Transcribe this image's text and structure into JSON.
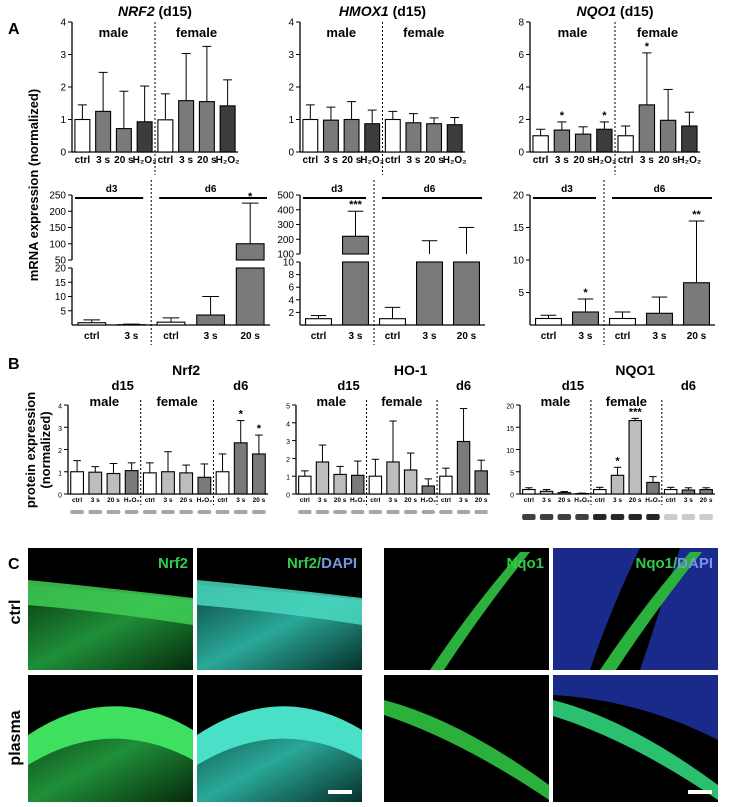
{
  "panels": [
    "A",
    "B",
    "C"
  ],
  "yaxis_a": "mRNA expression (normalized)",
  "yaxis_b_line1": "protein expression",
  "yaxis_b_line2": "(normalized)",
  "colors": {
    "white": "#ffffff",
    "light": "#bdbdbd",
    "mid": "#7a7a7a",
    "dark": "#3c3c3c",
    "green": "#2ecc4a",
    "blue": "#5a7ad8",
    "ifbg": "#000000"
  },
  "chart_data": [
    {
      "type": "bar",
      "id": "a-nrf2-d15",
      "title_gene": "NRF2",
      "title_suffix": " (d15)",
      "groups": [
        "male",
        "female"
      ],
      "categories": [
        "ctrl",
        "3 s",
        "20 s",
        "H₂O₂",
        "ctrl",
        "3 s",
        "20 s",
        "H₂O₂"
      ],
      "values": [
        1.0,
        1.25,
        0.72,
        0.93,
        0.99,
        1.58,
        1.55,
        1.42
      ],
      "errors": [
        0.45,
        1.2,
        1.15,
        1.1,
        0.8,
        1.45,
        1.7,
        0.8
      ],
      "ylim": [
        0,
        4
      ],
      "yticks": [
        "0",
        "1",
        "2",
        "3",
        "4"
      ],
      "stars": [
        "",
        "",
        "",
        "",
        "",
        "",
        "",
        ""
      ]
    },
    {
      "type": "bar",
      "id": "a-hmox1-d15",
      "title_gene": "HMOX1",
      "title_suffix": " (d15)",
      "groups": [
        "male",
        "female"
      ],
      "categories": [
        "ctrl",
        "3 s",
        "20 s",
        "H₂O₂",
        "ctrl",
        "3 s",
        "20 s",
        "H₂O₂"
      ],
      "values": [
        1.0,
        0.98,
        1.0,
        0.87,
        1.0,
        0.9,
        0.87,
        0.84
      ],
      "errors": [
        0.45,
        0.4,
        0.55,
        0.42,
        0.25,
        0.28,
        0.18,
        0.22
      ],
      "ylim": [
        0,
        4
      ],
      "yticks": [
        "0",
        "1",
        "2",
        "3",
        "4"
      ],
      "stars": [
        "",
        "",
        "",
        "",
        "",
        "",
        "",
        ""
      ]
    },
    {
      "type": "bar",
      "id": "a-nqo1-d15",
      "title_gene": "NQO1",
      "title_suffix": " (d15)",
      "groups": [
        "male",
        "female"
      ],
      "categories": [
        "ctrl",
        "3 s",
        "20 s",
        "H₂O₂",
        "ctrl",
        "3 s",
        "20 s",
        "H₂O₂"
      ],
      "values": [
        1.0,
        1.35,
        1.1,
        1.4,
        1.0,
        2.9,
        1.95,
        1.6
      ],
      "errors": [
        0.4,
        0.5,
        0.45,
        0.45,
        0.6,
        3.2,
        1.9,
        0.85
      ],
      "ylim": [
        0,
        8
      ],
      "yticks": [
        "0",
        "2",
        "4",
        "6",
        "8"
      ],
      "stars": [
        "",
        "*",
        "",
        "*",
        "",
        "*",
        "",
        ""
      ]
    },
    {
      "type": "bar",
      "id": "a-nrf2-d3d6",
      "groups": [
        "d3",
        "d6"
      ],
      "categories": [
        "ctrl",
        "3 s",
        "ctrl",
        "3 s",
        "20 s"
      ],
      "values": [
        0.8,
        0.1,
        1.0,
        3.5,
        100
      ],
      "errors": [
        1.0,
        0.2,
        1.5,
        6.5,
        125
      ],
      "yticks_low": [
        "5",
        "10",
        "15",
        "20"
      ],
      "yticks_high": [
        "50",
        "100",
        "150",
        "200",
        "250"
      ],
      "stars": [
        "",
        "",
        "",
        "",
        "*"
      ]
    },
    {
      "type": "bar",
      "id": "a-hmox1-d3d6",
      "groups": [
        "d3",
        "d6"
      ],
      "categories": [
        "ctrl",
        "3 s",
        "ctrl",
        "3 s",
        "20 s"
      ],
      "values": [
        1.0,
        220,
        1.0,
        50,
        70
      ],
      "errors": [
        0.5,
        170,
        1.8,
        140,
        210
      ],
      "yticks_low": [
        "2",
        "4",
        "6",
        "8",
        "10"
      ],
      "yticks_high": [
        "100",
        "200",
        "300",
        "400",
        "500"
      ],
      "stars": [
        "",
        "***",
        "",
        "",
        ""
      ]
    },
    {
      "type": "bar",
      "id": "a-nqo1-d3d6",
      "groups": [
        "d3",
        "d6"
      ],
      "categories": [
        "ctrl",
        "3 s",
        "ctrl",
        "3 s",
        "20 s"
      ],
      "values": [
        1.0,
        2.0,
        1.0,
        1.8,
        6.5
      ],
      "errors": [
        0.5,
        2.0,
        1.0,
        2.5,
        9.5
      ],
      "ylim": [
        0,
        20
      ],
      "yticks": [
        "5",
        "10",
        "15",
        "20"
      ],
      "stars": [
        "",
        "*",
        "",
        "",
        "**"
      ]
    },
    {
      "type": "bar",
      "id": "b-nrf2",
      "title": "Nrf2",
      "groups": [
        "male",
        "female",
        "d6"
      ],
      "group_top": "d15",
      "categories": [
        "ctrl",
        "3 s",
        "20 s",
        "H₂O₂",
        "ctrl",
        "3 s",
        "20 s",
        "H₂O₂",
        "ctrl",
        "3 s",
        "20 s"
      ],
      "values": [
        1.0,
        0.98,
        0.92,
        1.05,
        0.95,
        1.0,
        0.95,
        0.75,
        1.0,
        2.3,
        1.8
      ],
      "errors": [
        0.5,
        0.25,
        0.45,
        0.35,
        0.45,
        0.9,
        0.35,
        0.6,
        0.8,
        1.0,
        0.85
      ],
      "ylim": [
        0,
        4
      ],
      "yticks": [
        "0",
        "1",
        "2",
        "3",
        "4"
      ],
      "stars": [
        "",
        "",
        "",
        "",
        "",
        "",
        "",
        "",
        "",
        "*",
        "*"
      ]
    },
    {
      "type": "bar",
      "id": "b-ho1",
      "title": "HO-1",
      "groups": [
        "male",
        "female",
        "d6"
      ],
      "group_top": "d15",
      "categories": [
        "ctrl",
        "3 s",
        "20 s",
        "H₂O₂",
        "ctrl",
        "3 s",
        "20 s",
        "H₂O₂",
        "ctrl",
        "3 s",
        "20 s"
      ],
      "values": [
        1.0,
        1.8,
        1.1,
        1.05,
        1.0,
        1.8,
        1.35,
        0.45,
        1.0,
        2.95,
        1.3
      ],
      "errors": [
        0.3,
        0.95,
        0.45,
        0.8,
        0.95,
        2.3,
        0.95,
        0.4,
        0.45,
        1.85,
        0.6
      ],
      "ylim": [
        0,
        5
      ],
      "yticks": [
        "0",
        "1",
        "2",
        "3",
        "4",
        "5"
      ],
      "stars": [
        "",
        "",
        "",
        "",
        "",
        "",
        "",
        "",
        "",
        "",
        ""
      ]
    },
    {
      "type": "bar",
      "id": "b-nqo1",
      "title": "NQO1",
      "groups": [
        "male",
        "female",
        "d6"
      ],
      "group_top": "d15",
      "categories": [
        "ctrl",
        "3 s",
        "20 s",
        "H₂O₂",
        "ctrl",
        "3 s",
        "20 s",
        "H₂O₂",
        "ctrl",
        "3 s",
        "20 s"
      ],
      "values": [
        1.0,
        0.6,
        0.3,
        0.1,
        1.0,
        4.2,
        16.5,
        2.6,
        1.0,
        0.9,
        1.0
      ],
      "errors": [
        0.4,
        0.4,
        0.25,
        0.1,
        0.5,
        1.8,
        0.5,
        1.3,
        0.5,
        0.5,
        0.4
      ],
      "ylim": [
        0,
        20
      ],
      "yticks": [
        "0",
        "5",
        "10",
        "15",
        "20"
      ],
      "stars": [
        "",
        "",
        "",
        "",
        "",
        "*",
        "***",
        "",
        "",
        "",
        ""
      ]
    }
  ],
  "if_panel": {
    "rows": [
      "ctrl",
      "plasma"
    ],
    "left_labels": [
      "Nrf2",
      "Nrf2/",
      "DAPI"
    ],
    "right_labels": [
      "Nqo1",
      "Nqo1/",
      "DAPI"
    ]
  }
}
